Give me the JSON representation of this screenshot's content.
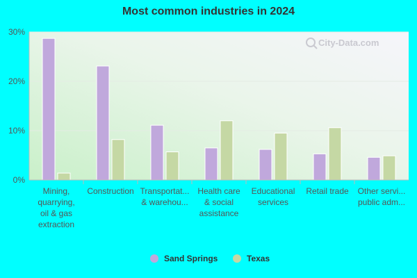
{
  "colors": {
    "page_background": "#00ffff",
    "sand_springs": "#c0a8dc",
    "texas": "#c5d8a4"
  },
  "watermark": "City-Data.com",
  "chart_data": {
    "type": "bar",
    "title": "Most common industries in 2024",
    "categories": [
      [
        "Mining,",
        "quarrying,",
        "oil & gas",
        "extraction"
      ],
      [
        "Construction"
      ],
      [
        "Transportat...",
        "& warehou..."
      ],
      [
        "Health care",
        "& social",
        "assistance"
      ],
      [
        "Educational",
        "services"
      ],
      [
        "Retail trade"
      ],
      [
        "Other servi...",
        "public adm..."
      ]
    ],
    "series": [
      {
        "name": "Sand Springs",
        "values": [
          28.7,
          23.1,
          11.1,
          6.5,
          6.2,
          5.3,
          4.6
        ]
      },
      {
        "name": "Texas",
        "values": [
          1.4,
          8.2,
          5.7,
          12.0,
          9.5,
          10.6,
          4.9
        ]
      }
    ],
    "yticks": [
      "0%",
      "10%",
      "20%",
      "30%"
    ],
    "ylim": [
      0,
      30
    ],
    "legend_position": "bottom",
    "grid": true
  }
}
